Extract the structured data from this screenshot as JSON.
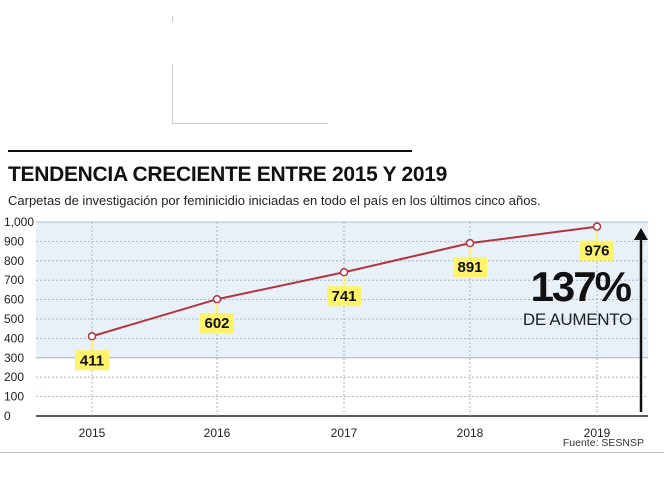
{
  "chart_data": {
    "type": "line",
    "title": "TENDENCIA CRECIENTE ENTRE 2015 Y 2019",
    "subtitle": "Carpetas de investigación por feminicidio iniciadas en todo el país en los últimos cinco años.",
    "categories": [
      "2015",
      "2016",
      "2017",
      "2018",
      "2019"
    ],
    "values": [
      411,
      602,
      741,
      891,
      976
    ],
    "data_labels": [
      "411",
      "602",
      "741",
      "891",
      "976"
    ],
    "y_ticks": [
      "0",
      "100",
      "200",
      "300",
      "400",
      "500",
      "600",
      "700",
      "800",
      "900",
      "1,000"
    ],
    "ylim": [
      0,
      1000
    ],
    "xlabel": "",
    "ylabel": "",
    "grid": true,
    "headline_value": "137%",
    "headline_text": "DE AUMENTO",
    "source": "Fuente: SESNSP",
    "colors": {
      "line": "#b5323f",
      "label_bg": "#fff36b",
      "plot_band": "#e8f1f8",
      "grid": "#9aa8b4"
    }
  }
}
